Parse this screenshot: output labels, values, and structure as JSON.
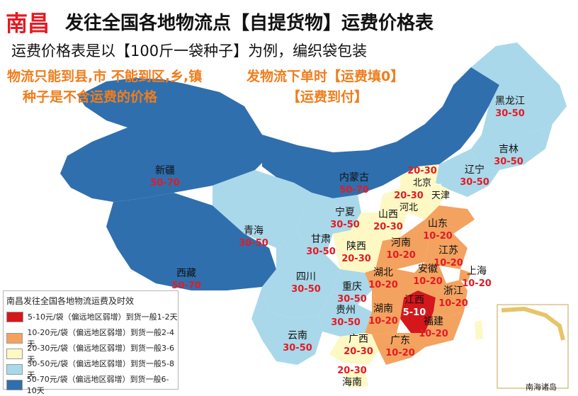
{
  "title": {
    "city": "南昌",
    "main": "发往全国各地物流点【自提货物】运费价格表",
    "subtitle": "运费价格表是以【100斤一袋种子】为例，编织袋包装"
  },
  "notes": {
    "left_line1": "物流只能到县,市 不能到区,乡,镇",
    "left_line2": "种子是不含运费的价格",
    "right_line1": "发物流下单时【运费填0】",
    "right_line2": "【运费到付】"
  },
  "colors": {
    "red": "#d5171c",
    "orange": "#f4a260",
    "yellow": "#fdf8c4",
    "light_blue": "#a9d8ea",
    "dark_blue": "#2f6fae"
  },
  "provinces": [
    {
      "name": "黑龙江",
      "price": "30-50",
      "tier": "light_blue"
    },
    {
      "name": "吉林",
      "price": "30-50",
      "tier": "light_blue"
    },
    {
      "name": "辽宁",
      "price": "30-50",
      "tier": "light_blue"
    },
    {
      "name": "新疆",
      "price": "50-70",
      "tier": "dark_blue"
    },
    {
      "name": "内蒙古",
      "price": "50-70",
      "tier": "dark_blue"
    },
    {
      "name": "北京",
      "price": "20-30",
      "tier": "yellow"
    },
    {
      "name": "天津",
      "price": "20-30",
      "tier": "yellow"
    },
    {
      "name": "河北",
      "price": "20-30",
      "tier": "yellow"
    },
    {
      "name": "宁夏",
      "price": "30-50",
      "tier": "light_blue"
    },
    {
      "name": "山西",
      "price": "20-30",
      "tier": "yellow"
    },
    {
      "name": "山东",
      "price": "10-20",
      "tier": "orange"
    },
    {
      "name": "青海",
      "price": "30-50",
      "tier": "light_blue"
    },
    {
      "name": "甘肃",
      "price": "30-50",
      "tier": "light_blue"
    },
    {
      "name": "陕西",
      "price": "20-30",
      "tier": "yellow"
    },
    {
      "name": "河南",
      "price": "10-20",
      "tier": "orange"
    },
    {
      "name": "江苏",
      "price": "10-20",
      "tier": "orange"
    },
    {
      "name": "西藏",
      "price": "50-70",
      "tier": "dark_blue"
    },
    {
      "name": "四川",
      "price": "30-50",
      "tier": "light_blue"
    },
    {
      "name": "湖北",
      "price": "10-20",
      "tier": "orange"
    },
    {
      "name": "安徽",
      "price": "10-20",
      "tier": "orange"
    },
    {
      "name": "上海",
      "price": "10-20",
      "tier": "orange"
    },
    {
      "name": "重庆",
      "price": "30-50",
      "tier": "light_blue"
    },
    {
      "name": "浙江",
      "price": "10-20",
      "tier": "orange"
    },
    {
      "name": "江西",
      "price": "5-10",
      "tier": "red"
    },
    {
      "name": "湖南",
      "price": "10-20",
      "tier": "orange"
    },
    {
      "name": "贵州",
      "price": "30-50",
      "tier": "light_blue"
    },
    {
      "name": "福建",
      "price": "10-20",
      "tier": "orange"
    },
    {
      "name": "云南",
      "price": "30-50",
      "tier": "light_blue"
    },
    {
      "name": "广西",
      "price": "20-30",
      "tier": "yellow"
    },
    {
      "name": "广东",
      "price": "10-20",
      "tier": "orange"
    },
    {
      "name": "海南",
      "price": "20-30",
      "tier": "yellow"
    }
  ],
  "legend": {
    "title": "南昌发往全国各地物流运费及时效",
    "items": [
      {
        "tier": "red",
        "label": "5-10元/袋（偏远地区弱增）到货一般1-2天"
      },
      {
        "tier": "orange",
        "label": "10-20元/袋（偏远地区弱增）到货一般2-4天"
      },
      {
        "tier": "yellow",
        "label": "20-30元/袋（偏远地区弱增）到货一般3-6天"
      },
      {
        "tier": "light_blue",
        "label": "30-50元/袋（偏远地区弱增）到货一般5-8天"
      },
      {
        "tier": "dark_blue",
        "label": "50-70元/袋（偏远地区弱增）到货一般6-10天"
      }
    ]
  },
  "inset_label": "南海诸岛"
}
